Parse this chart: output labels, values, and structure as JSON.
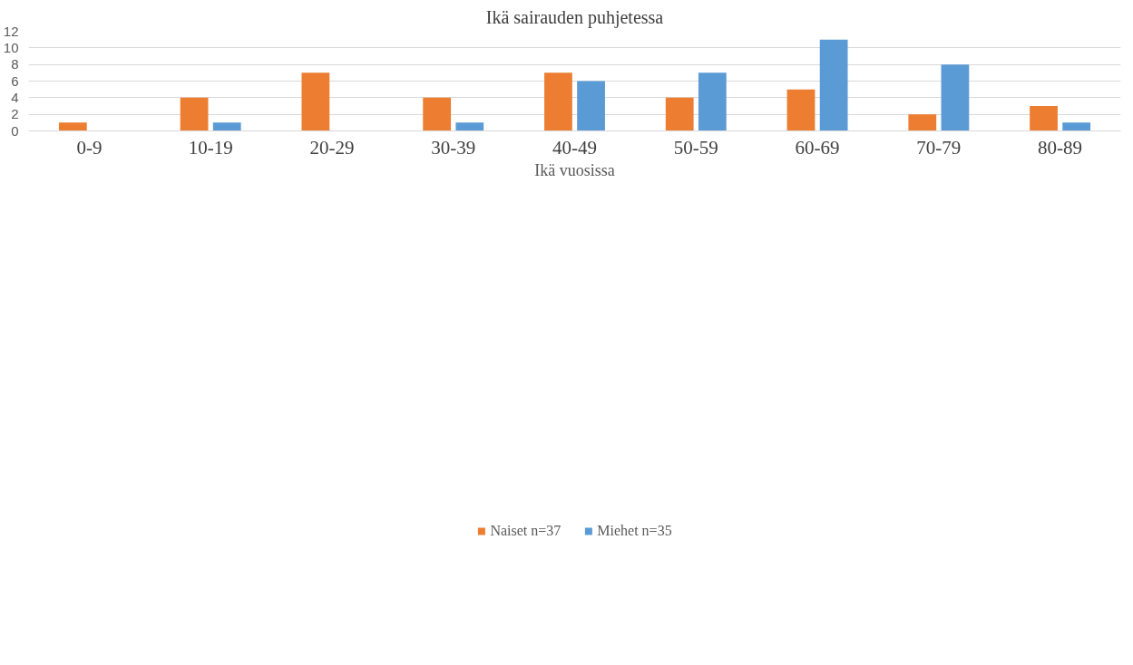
{
  "chart_data": {
    "type": "bar",
    "title": "Ikä sairauden puhjetessa",
    "xlabel": "Ikä vuosissa",
    "categories": [
      "0-9",
      "10-19",
      "20-29",
      "30-39",
      "40-49",
      "50-59",
      "60-69",
      "70-79",
      "80-89"
    ],
    "series": [
      {
        "name": "Naiset n=37",
        "color": "#ed7d31",
        "values": [
          1,
          4,
          7,
          4,
          7,
          4,
          5,
          2,
          3
        ]
      },
      {
        "name": "Miehet n=35",
        "color": "#5b9bd5",
        "values": [
          0,
          1,
          0,
          1,
          6,
          7,
          11,
          8,
          1
        ]
      }
    ],
    "ylim": [
      0,
      12
    ],
    "yticks": [
      0,
      2,
      4,
      6,
      8,
      10,
      12
    ],
    "grid": "y",
    "legend": "bottom"
  }
}
